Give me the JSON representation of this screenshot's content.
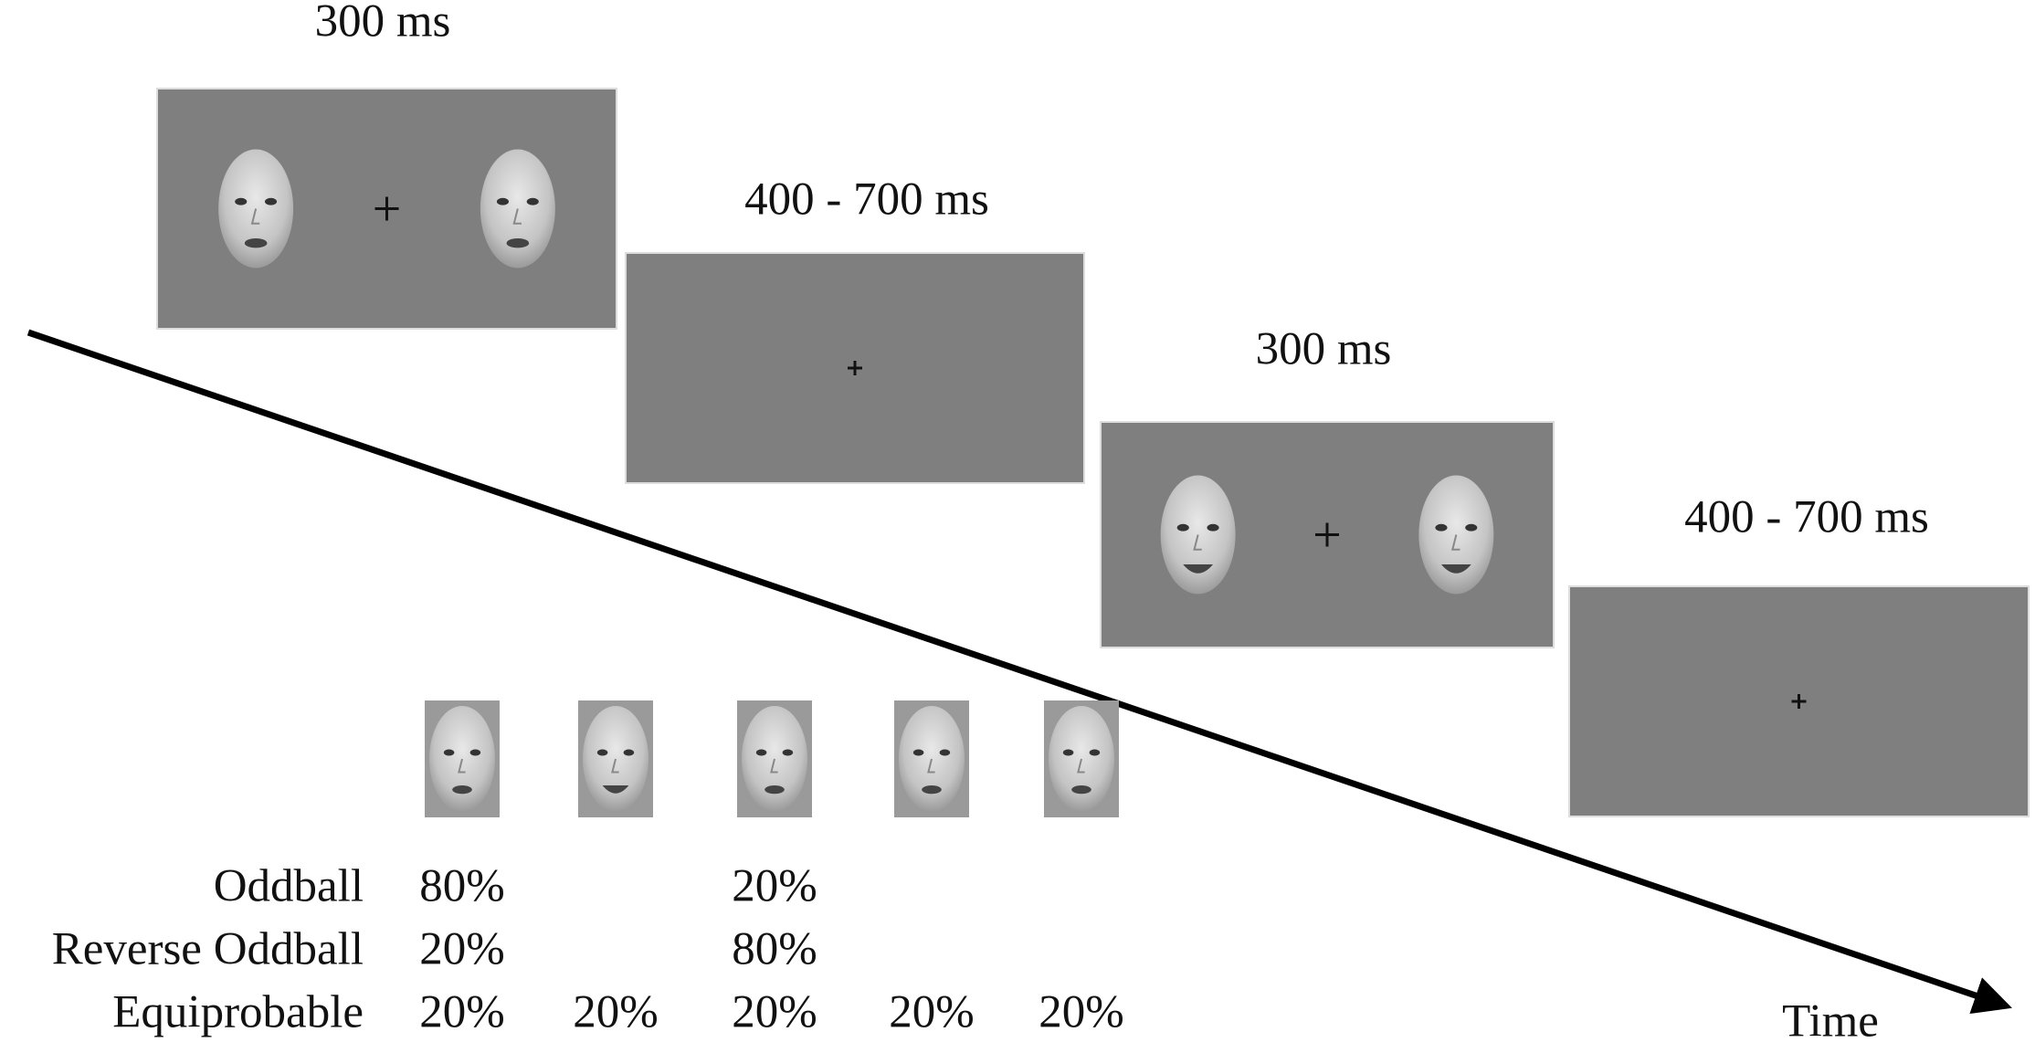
{
  "frames": [
    {
      "duration": "300 ms"
    },
    {
      "duration": "400 - 700 ms"
    },
    {
      "duration": "300 ms"
    },
    {
      "duration": "400 - 700 ms"
    }
  ],
  "axis_label": "Time",
  "table": {
    "rows": [
      {
        "label": "Oddball",
        "cells": [
          "80%",
          null,
          "20%",
          null,
          null
        ]
      },
      {
        "label": "Reverse Oddball",
        "cells": [
          "20%",
          null,
          "80%",
          null,
          null
        ]
      },
      {
        "label": "Equiprobable",
        "cells": [
          "20%",
          "20%",
          "20%",
          "20%",
          "20%"
        ]
      }
    ]
  }
}
